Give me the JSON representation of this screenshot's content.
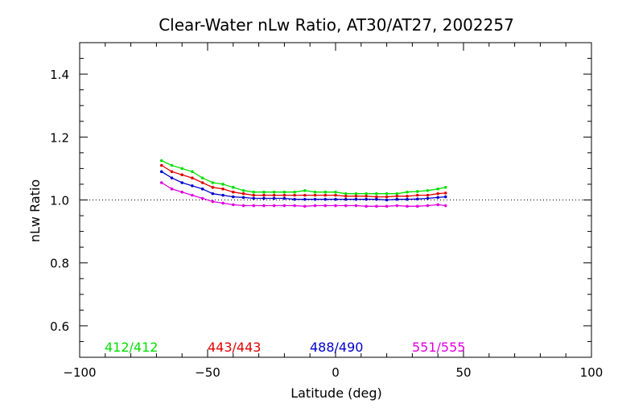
{
  "chart_data": {
    "type": "line",
    "title": "Clear-Water nLw Ratio, AT30/AT27, 2002257",
    "xlabel": "Latitude (deg)",
    "ylabel": "nLw Ratio",
    "xlim": [
      -100,
      100
    ],
    "ylim": [
      0.5,
      1.5
    ],
    "xticks": [
      -100,
      -50,
      0,
      50,
      100
    ],
    "xtick_labels": [
      "−100",
      "−50",
      "0",
      "50",
      "100"
    ],
    "yticks": [
      0.6,
      0.8,
      1.0,
      1.2,
      1.4
    ],
    "ytick_labels": [
      "0.6",
      "0.8",
      "1.0",
      "1.2",
      "1.4"
    ],
    "reference_line": {
      "y": 1.0,
      "style": "dotted"
    },
    "grid": false,
    "legend_placement": "bottom, inside plot",
    "x": [
      -68,
      -64,
      -60,
      -56,
      -52,
      -48,
      -44,
      -40,
      -36,
      -32,
      -28,
      -24,
      -20,
      -16,
      -12,
      -8,
      -4,
      0,
      4,
      8,
      12,
      16,
      20,
      24,
      28,
      32,
      36,
      40,
      43
    ],
    "series": [
      {
        "name": "412/412",
        "color": "#00e000",
        "values": [
          1.125,
          1.11,
          1.1,
          1.09,
          1.07,
          1.055,
          1.05,
          1.04,
          1.03,
          1.025,
          1.025,
          1.025,
          1.025,
          1.025,
          1.03,
          1.025,
          1.025,
          1.025,
          1.02,
          1.02,
          1.02,
          1.02,
          1.02,
          1.02,
          1.025,
          1.027,
          1.03,
          1.035,
          1.04
        ]
      },
      {
        "name": "443/443",
        "color": "#e00000",
        "values": [
          1.11,
          1.09,
          1.08,
          1.07,
          1.055,
          1.04,
          1.035,
          1.025,
          1.02,
          1.015,
          1.015,
          1.015,
          1.015,
          1.015,
          1.015,
          1.015,
          1.015,
          1.015,
          1.012,
          1.012,
          1.012,
          1.01,
          1.01,
          1.012,
          1.012,
          1.015,
          1.015,
          1.02,
          1.022
        ]
      },
      {
        "name": "488/490",
        "color": "#0000cc",
        "values": [
          1.09,
          1.07,
          1.055,
          1.045,
          1.035,
          1.02,
          1.015,
          1.01,
          1.008,
          1.005,
          1.005,
          1.005,
          1.005,
          1.002,
          1.002,
          1.002,
          1.002,
          1.002,
          1.002,
          1.002,
          1.002,
          1.002,
          1.0,
          1.002,
          1.002,
          1.003,
          1.005,
          1.008,
          1.01
        ]
      },
      {
        "name": "551/555",
        "color": "#e000e0",
        "values": [
          1.055,
          1.035,
          1.025,
          1.015,
          1.005,
          0.995,
          0.99,
          0.985,
          0.982,
          0.982,
          0.982,
          0.982,
          0.982,
          0.982,
          0.98,
          0.982,
          0.982,
          0.982,
          0.982,
          0.982,
          0.98,
          0.98,
          0.98,
          0.982,
          0.98,
          0.98,
          0.982,
          0.985,
          0.982
        ]
      }
    ]
  }
}
